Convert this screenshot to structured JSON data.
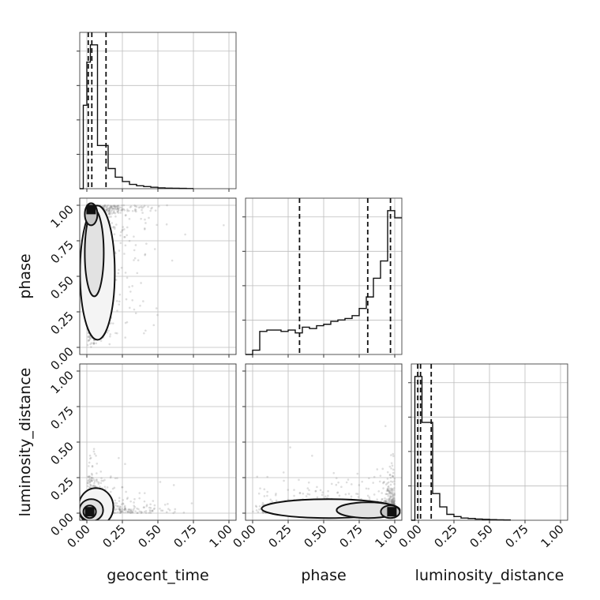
{
  "chart_data": {
    "type": "corner",
    "parameters": [
      "geocent_time",
      "phase",
      "luminosity_distance"
    ],
    "axis_ticks": [
      "0.00",
      "0.25",
      "0.50",
      "0.75",
      "1.00"
    ],
    "range": [
      -0.05,
      1.05
    ],
    "grid": true,
    "histograms": [
      {
        "parameter": "geocent_time",
        "bin_edges": [
          -0.05,
          -0.025,
          0.0,
          0.025,
          0.05,
          0.075,
          0.1,
          0.125,
          0.15,
          0.175,
          0.2,
          0.25,
          0.3,
          0.35,
          0.4,
          0.45,
          0.5,
          0.55,
          0.6,
          0.65,
          0.7,
          0.75
        ],
        "heights": [
          0.0,
          0.58,
          0.88,
          1.0,
          1.0,
          0.3,
          0.3,
          0.3,
          0.14,
          0.14,
          0.08,
          0.05,
          0.03,
          0.02,
          0.015,
          0.01,
          0.006,
          0.004,
          0.003,
          0.002,
          0.001
        ],
        "quantiles": [
          0.01,
          0.035,
          0.135
        ]
      },
      {
        "parameter": "phase",
        "bin_edges": [
          -0.05,
          0.0,
          0.05,
          0.1,
          0.15,
          0.2,
          0.25,
          0.3,
          0.35,
          0.4,
          0.45,
          0.5,
          0.55,
          0.6,
          0.65,
          0.7,
          0.75,
          0.8,
          0.85,
          0.9,
          0.95,
          1.0,
          1.05
        ],
        "heights": [
          0.0,
          0.03,
          0.16,
          0.17,
          0.17,
          0.16,
          0.17,
          0.15,
          0.19,
          0.18,
          0.2,
          0.21,
          0.23,
          0.24,
          0.25,
          0.27,
          0.32,
          0.4,
          0.53,
          0.65,
          1.0,
          0.95
        ],
        "quantiles": [
          0.33,
          0.81,
          0.97
        ]
      },
      {
        "parameter": "luminosity_distance",
        "bin_edges": [
          -0.05,
          -0.025,
          0.0,
          0.025,
          0.05,
          0.075,
          0.1,
          0.125,
          0.15,
          0.2,
          0.25,
          0.3,
          0.35,
          0.4,
          0.45,
          0.5,
          0.55,
          0.6,
          0.65
        ],
        "heights": [
          0.0,
          0.97,
          0.97,
          0.66,
          0.66,
          0.66,
          0.18,
          0.18,
          0.09,
          0.04,
          0.025,
          0.015,
          0.012,
          0.008,
          0.006,
          0.004,
          0.003,
          0.002
        ],
        "quantiles": [
          -0.005,
          0.015,
          0.09
        ]
      }
    ],
    "scatter_panels": [
      {
        "x": "geocent_time",
        "y": "phase"
      },
      {
        "x": "geocent_time",
        "y": "luminosity_distance"
      },
      {
        "x": "phase",
        "y": "luminosity_distance"
      }
    ],
    "density_peaks": [
      {
        "x": "geocent_time",
        "y": "phase",
        "peak": [
          0.03,
          0.97
        ]
      },
      {
        "x": "geocent_time",
        "y": "luminosity_distance",
        "peak": [
          0.02,
          0.01
        ]
      },
      {
        "x": "phase",
        "y": "luminosity_distance",
        "peak": [
          0.98,
          0.01
        ]
      }
    ]
  }
}
